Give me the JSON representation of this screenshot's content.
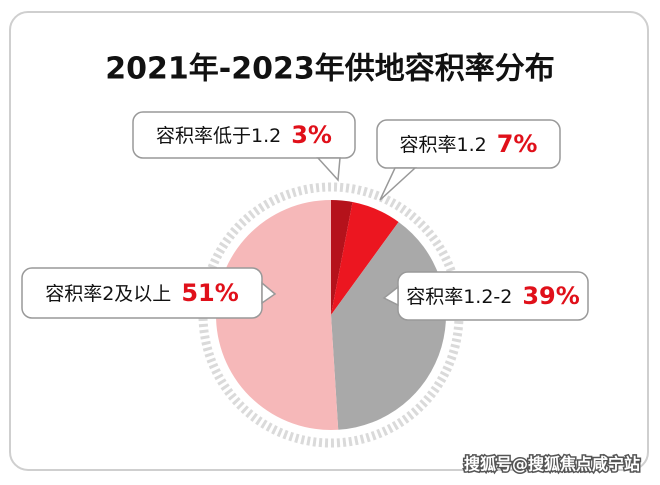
{
  "chart_data": {
    "type": "pie",
    "title": "2021年-2023年供地容积率分布",
    "categories": [
      "容积率低于1.2",
      "容积率1.2",
      "容积率1.2-2",
      "容积率2及以上"
    ],
    "values": [
      3,
      7,
      39,
      51
    ],
    "value_labels": [
      "3%",
      "7%",
      "39%",
      "51%"
    ],
    "colors": [
      "#b5121b",
      "#ec1620",
      "#a9a9a9",
      "#f6b8b9"
    ]
  },
  "watermark": "搜狐号@搜狐焦点咸宁站"
}
